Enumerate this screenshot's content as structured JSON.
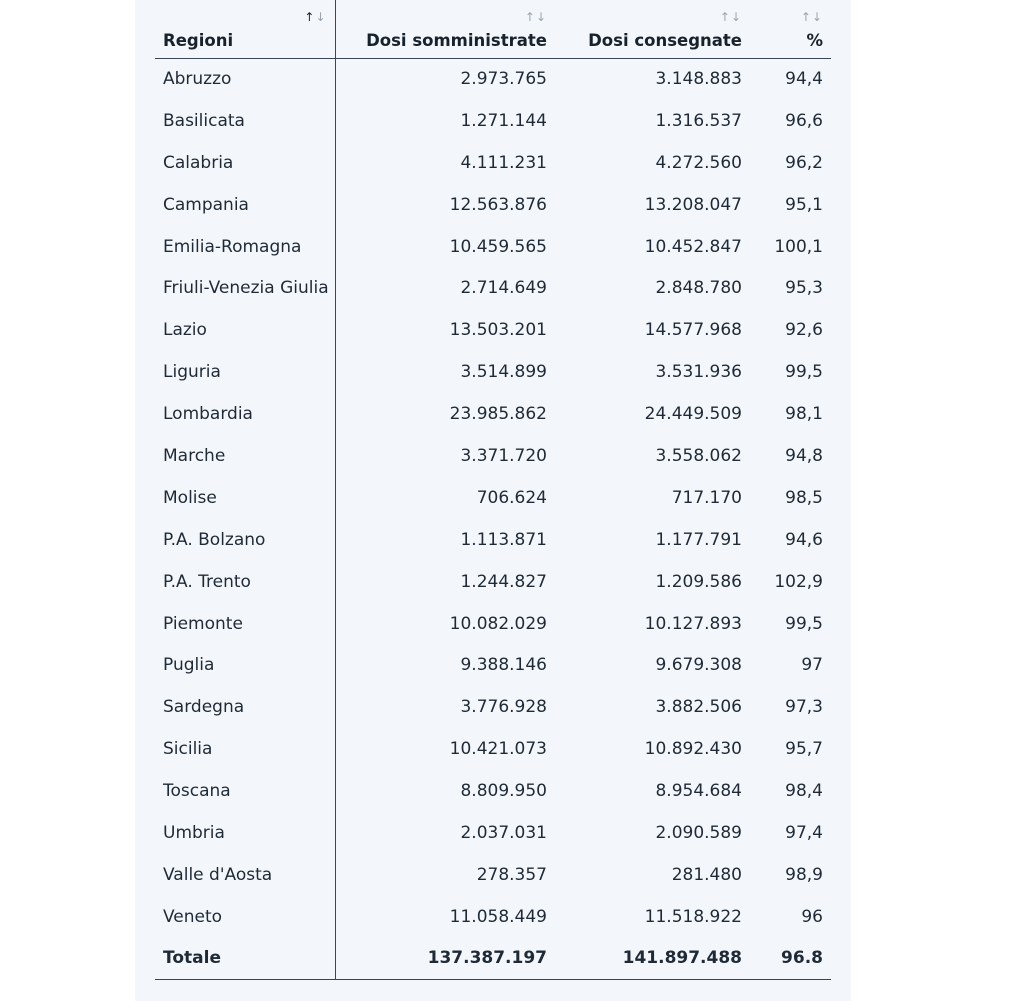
{
  "table": {
    "headers": {
      "region": "Regioni",
      "administered": "Dosi somministrate",
      "delivered": "Dosi consegnate",
      "percent": "%"
    },
    "sort_icon": "↑↓",
    "rows": [
      {
        "region": "Abruzzo",
        "administered": "2.973.765",
        "delivered": "3.148.883",
        "percent": "94,4"
      },
      {
        "region": "Basilicata",
        "administered": "1.271.144",
        "delivered": "1.316.537",
        "percent": "96,6"
      },
      {
        "region": "Calabria",
        "administered": "4.111.231",
        "delivered": "4.272.560",
        "percent": "96,2"
      },
      {
        "region": "Campania",
        "administered": "12.563.876",
        "delivered": "13.208.047",
        "percent": "95,1"
      },
      {
        "region": "Emilia-Romagna",
        "administered": "10.459.565",
        "delivered": "10.452.847",
        "percent": "100,1"
      },
      {
        "region": "Friuli-Venezia Giulia",
        "administered": "2.714.649",
        "delivered": "2.848.780",
        "percent": "95,3"
      },
      {
        "region": "Lazio",
        "administered": "13.503.201",
        "delivered": "14.577.968",
        "percent": "92,6"
      },
      {
        "region": "Liguria",
        "administered": "3.514.899",
        "delivered": "3.531.936",
        "percent": "99,5"
      },
      {
        "region": "Lombardia",
        "administered": "23.985.862",
        "delivered": "24.449.509",
        "percent": "98,1"
      },
      {
        "region": "Marche",
        "administered": "3.371.720",
        "delivered": "3.558.062",
        "percent": "94,8"
      },
      {
        "region": "Molise",
        "administered": "706.624",
        "delivered": "717.170",
        "percent": "98,5"
      },
      {
        "region": "P.A. Bolzano",
        "administered": "1.113.871",
        "delivered": "1.177.791",
        "percent": "94,6"
      },
      {
        "region": "P.A. Trento",
        "administered": "1.244.827",
        "delivered": "1.209.586",
        "percent": "102,9"
      },
      {
        "region": "Piemonte",
        "administered": "10.082.029",
        "delivered": "10.127.893",
        "percent": "99,5"
      },
      {
        "region": "Puglia",
        "administered": "9.388.146",
        "delivered": "9.679.308",
        "percent": "97"
      },
      {
        "region": "Sardegna",
        "administered": "3.776.928",
        "delivered": "3.882.506",
        "percent": "97,3"
      },
      {
        "region": "Sicilia",
        "administered": "10.421.073",
        "delivered": "10.892.430",
        "percent": "95,7"
      },
      {
        "region": "Toscana",
        "administered": "8.809.950",
        "delivered": "8.954.684",
        "percent": "98,4"
      },
      {
        "region": "Umbria",
        "administered": "2.037.031",
        "delivered": "2.090.589",
        "percent": "97,4"
      },
      {
        "region": "Valle d'Aosta",
        "administered": "278.357",
        "delivered": "281.480",
        "percent": "98,9"
      },
      {
        "region": "Veneto",
        "administered": "11.058.449",
        "delivered": "11.518.922",
        "percent": "96"
      }
    ],
    "total": {
      "region": "Totale",
      "administered": "137.387.197",
      "delivered": "141.897.488",
      "percent": "96.8"
    }
  }
}
